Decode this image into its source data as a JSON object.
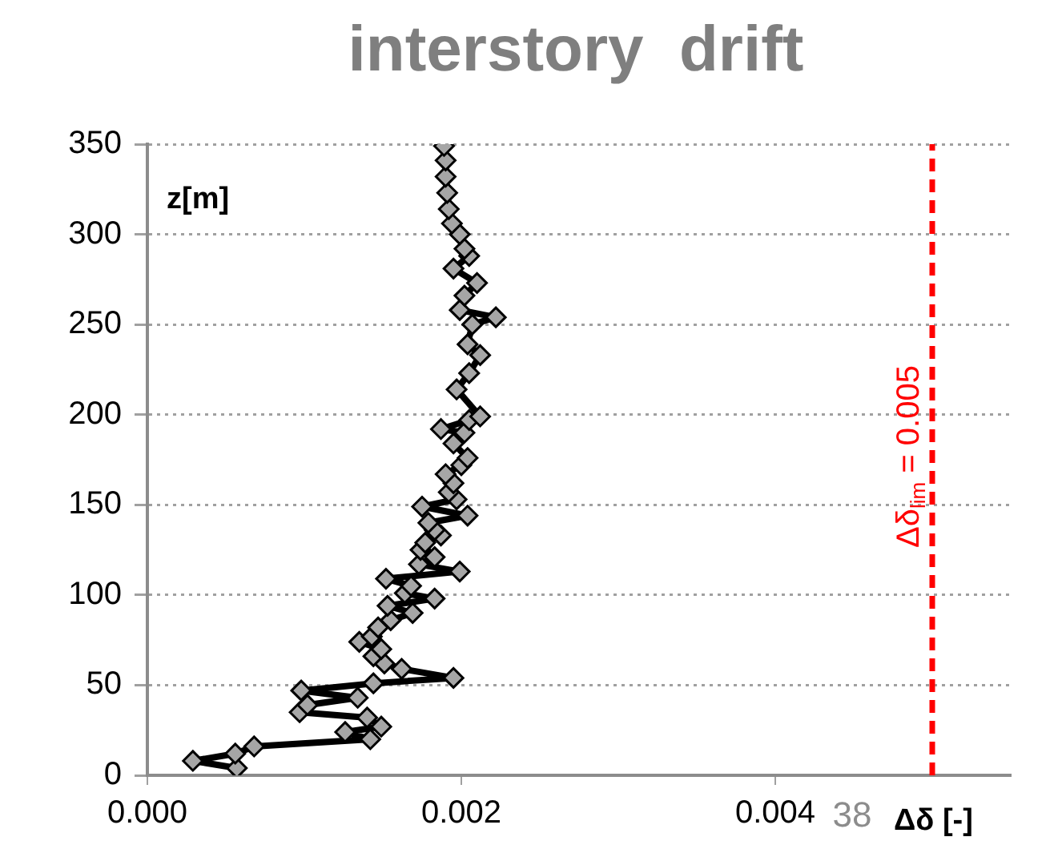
{
  "chart_data": {
    "type": "line",
    "title": "interstory  drift",
    "xlabel": "Δδ [-]",
    "ylabel": "z[m]",
    "series": [
      {
        "color": "#000000",
        "marker": "diamond",
        "line_style": "solid",
        "x": [
          0.00057,
          0.00029,
          0.00056,
          0.00068,
          0.00142,
          0.00126,
          0.00149,
          0.0014,
          0.00097,
          0.00102,
          0.00134,
          0.00098,
          0.00144,
          0.00195,
          0.00162,
          0.00151,
          0.00144,
          0.00149,
          0.00135,
          0.00143,
          0.00147,
          0.00155,
          0.00169,
          0.00153,
          0.00183,
          0.00164,
          0.00168,
          0.00152,
          0.00199,
          0.00173,
          0.00183,
          0.00174,
          0.00177,
          0.00187,
          0.00183,
          0.00179,
          0.00204,
          0.00175,
          0.00197,
          0.00192,
          0.00195,
          0.0019,
          0.002,
          0.00204,
          0.00195,
          0.00202,
          0.00187,
          0.00205,
          0.00212,
          0.00197,
          0.00205,
          0.00212,
          0.00204,
          0.00207,
          0.00222,
          0.00199,
          0.00202,
          0.0021,
          0.00195,
          0.00205,
          0.00202,
          0.00199,
          0.00194,
          0.00192,
          0.00191,
          0.0019,
          0.0019,
          0.00189
        ],
        "values": [
          4,
          8,
          12,
          16,
          20,
          24,
          27,
          32,
          35,
          39,
          43,
          47,
          51,
          54,
          59,
          62,
          66,
          70,
          74,
          77,
          82,
          86,
          90,
          94,
          98,
          101,
          105,
          109,
          113,
          117,
          121,
          125,
          129,
          133,
          136,
          140,
          144,
          149,
          153,
          157,
          162,
          167,
          172,
          176,
          184,
          190,
          192,
          197,
          199,
          214,
          223,
          233,
          239,
          250,
          254,
          258,
          266,
          273,
          281,
          288,
          292,
          300,
          306,
          314,
          323,
          332,
          341,
          349
        ]
      }
    ],
    "xlim": [
      0,
      0.0055
    ],
    "xticks": [
      {
        "value": 0,
        "label": "0.000"
      },
      {
        "value": 0.002,
        "label": "0.002"
      },
      {
        "value": 0.004,
        "label": "0.004"
      }
    ],
    "ylim": [
      0,
      350
    ],
    "yticks": [
      0,
      50,
      100,
      150,
      200,
      250,
      300,
      350
    ],
    "grid": "y",
    "legend": false,
    "ref_lines": [
      {
        "axis": "x",
        "value": 0.005,
        "label": "Δδ$_{lim}$ = 0.005",
        "color": "#ff0000",
        "line_style": "dashed"
      }
    ],
    "annotations": [
      "38"
    ]
  }
}
